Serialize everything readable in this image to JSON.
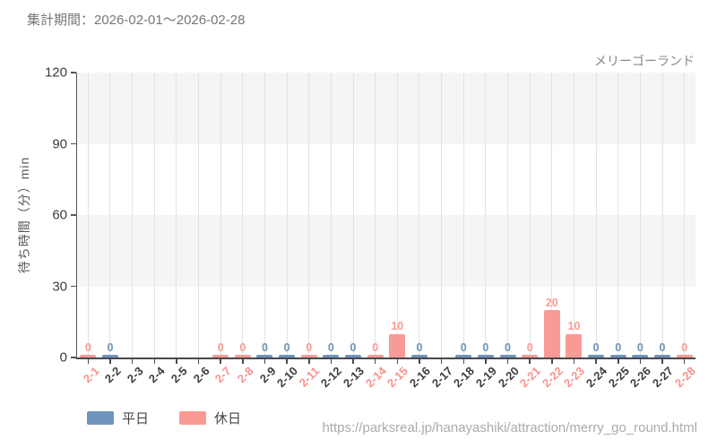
{
  "header": {
    "title": "集計期間：2026-02-01～2026-02-28"
  },
  "chart_data": {
    "type": "bar",
    "title": "メリーゴーランド",
    "xlabel": "",
    "ylabel": "待ち時間（分）min",
    "ylim": [
      0,
      120
    ],
    "yticks": [
      0,
      30,
      60,
      90,
      120
    ],
    "grid": "vertical gridline per category; alternating horizontal bands (gray/white) every 30 units",
    "legend_position": "bottom-left",
    "categories": [
      "2-1",
      "2-2",
      "2-3",
      "2-4",
      "2-5",
      "2-6",
      "2-7",
      "2-8",
      "2-9",
      "2-10",
      "2-11",
      "2-12",
      "2-13",
      "2-14",
      "2-15",
      "2-16",
      "2-17",
      "2-18",
      "2-19",
      "2-20",
      "2-21",
      "2-22",
      "2-23",
      "2-24",
      "2-25",
      "2-26",
      "2-27",
      "2-28"
    ],
    "series": [
      {
        "name": "平日",
        "color": "#6d94bb",
        "values": [
          null,
          0,
          null,
          null,
          null,
          null,
          null,
          null,
          0,
          0,
          null,
          0,
          0,
          null,
          null,
          0,
          null,
          0,
          0,
          0,
          null,
          null,
          null,
          0,
          0,
          0,
          0,
          null
        ]
      },
      {
        "name": "休日",
        "color": "#fa9a94",
        "values": [
          0,
          null,
          null,
          null,
          null,
          null,
          0,
          0,
          null,
          null,
          0,
          null,
          null,
          0,
          10,
          null,
          null,
          null,
          null,
          null,
          0,
          20,
          10,
          null,
          null,
          null,
          null,
          0
        ]
      }
    ],
    "colors": {
      "weekday": "#6d94bb",
      "holiday": "#fa9a94",
      "weekday_tick_label": "#3d3d42",
      "holiday_tick_label": "#f9918c",
      "band_gray": "#f5f5f6",
      "band_white": "#ffffff"
    }
  },
  "footer": {
    "url": "https://parksreal.jp/hanayashiki/attraction/merry_go_round.html"
  }
}
